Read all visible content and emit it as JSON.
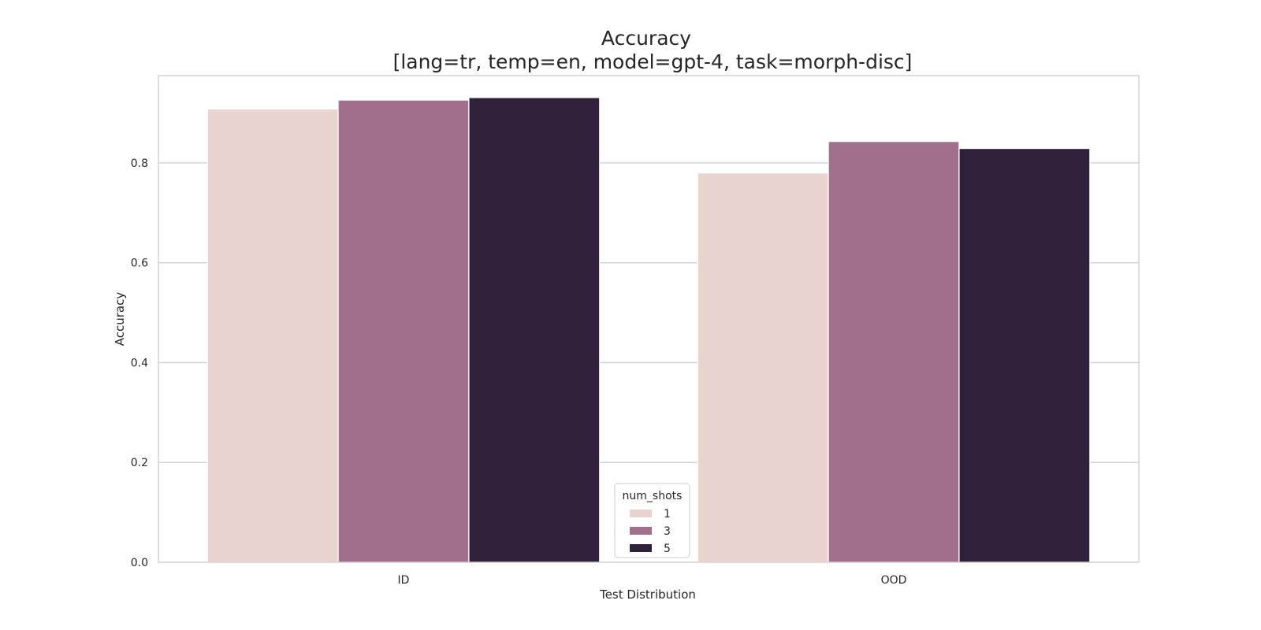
{
  "chart_data": {
    "type": "bar",
    "title": "Accuracy",
    "subtitle": "[lang=tr, temp=en, model=gpt-4, task=morph-disc]",
    "xlabel": "Test Distribution",
    "ylabel": "Accuracy",
    "categories": [
      "ID",
      "OOD"
    ],
    "ylim": [
      0,
      0.975
    ],
    "yticks": [
      0.0,
      0.2,
      0.4,
      0.6,
      0.8
    ],
    "ytick_labels": [
      "0.0",
      "0.2",
      "0.4",
      "0.6",
      "0.8"
    ],
    "grid": "horizontal",
    "legend": {
      "title": "num_shots",
      "placement": "bottom-center"
    },
    "series": [
      {
        "name": "1",
        "color": "#e9d4d0",
        "values": [
          0.908,
          0.78
        ]
      },
      {
        "name": "3",
        "color": "#a1708d",
        "values": [
          0.926,
          0.843
        ]
      },
      {
        "name": "5",
        "color": "#2e2139",
        "values": [
          0.931,
          0.829
        ]
      }
    ]
  }
}
